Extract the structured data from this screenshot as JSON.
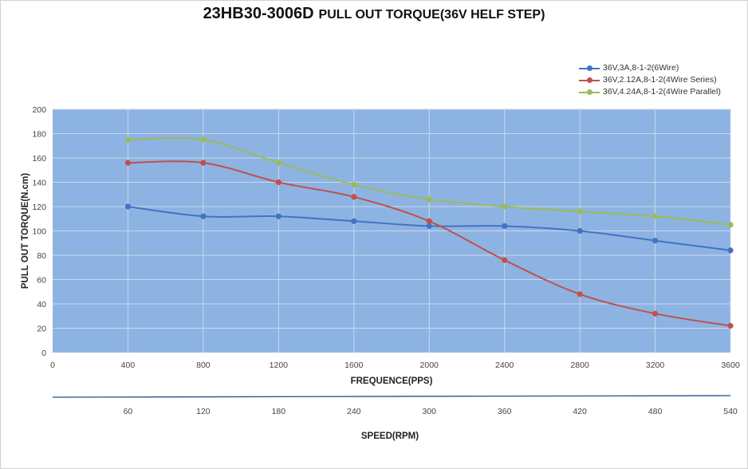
{
  "title": {
    "model": "23HB30-3006D",
    "subtitle": "PULL OUT TORQUE(36V HELF STEP)"
  },
  "chart_data": {
    "type": "line",
    "title": "23HB30-3006D PULL OUT TORQUE(36V HELF STEP)",
    "xlabel": "FREQUENCE(PPS)",
    "ylabel": "PULL OUT TORQUE(N.cm)",
    "secondary_xlabel": "SPEED(RPM)",
    "xlim": [
      0,
      3600
    ],
    "ylim": [
      0,
      200
    ],
    "x_ticks": [
      0,
      400,
      800,
      1200,
      1600,
      2000,
      2400,
      2800,
      3200,
      3600
    ],
    "y_ticks": [
      0,
      20,
      40,
      60,
      80,
      100,
      120,
      140,
      160,
      180,
      200
    ],
    "secondary_x_ticks": [
      {
        "x": 400,
        "label": "60"
      },
      {
        "x": 800,
        "label": "120"
      },
      {
        "x": 1200,
        "label": "180"
      },
      {
        "x": 1600,
        "label": "240"
      },
      {
        "x": 2000,
        "label": "300"
      },
      {
        "x": 2400,
        "label": "360"
      },
      {
        "x": 2800,
        "label": "420"
      },
      {
        "x": 3200,
        "label": "480"
      },
      {
        "x": 3600,
        "label": "540"
      }
    ],
    "x": [
      400,
      800,
      1200,
      1600,
      2000,
      2400,
      2800,
      3200,
      3600
    ],
    "series": [
      {
        "name": "36V,3A,8-1-2(6Wire)",
        "color": "#4472c4",
        "values": [
          120,
          112,
          112,
          108,
          104,
          104,
          100,
          92,
          84
        ]
      },
      {
        "name": "36V,2.12A,8-1-2(4Wire Series)",
        "color": "#c0504d",
        "values": [
          156,
          156,
          140,
          128,
          108,
          76,
          48,
          32,
          22
        ]
      },
      {
        "name": "36V,4.24A,8-1-2(4Wire Parallel)",
        "color": "#9bbb59",
        "values": [
          175,
          175,
          156,
          138,
          126,
          120,
          116,
          112,
          105
        ]
      }
    ],
    "grid": true,
    "legend_position": "top-right",
    "plot_background": "#8db3e2",
    "gridline_color": "#c9d8ee",
    "secondary_axis_color": "#1f4e8c"
  }
}
